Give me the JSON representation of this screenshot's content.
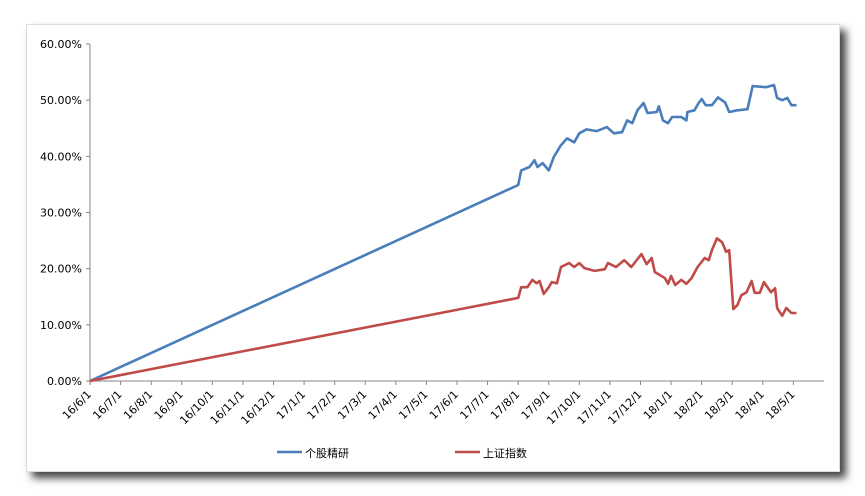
{
  "chart_data": {
    "type": "line",
    "title": "",
    "xlabel": "",
    "ylabel": "",
    "ylim": [
      0,
      60
    ],
    "yticks": [
      "0.00%",
      "10.00%",
      "20.00%",
      "30.00%",
      "40.00%",
      "50.00%",
      "60.00%"
    ],
    "xlim": [
      "2016-06-01",
      "2018-06-01"
    ],
    "xticks": [
      "16/6/1",
      "16/7/1",
      "16/8/1",
      "16/9/1",
      "16/10/1",
      "16/11/1",
      "16/12/1",
      "17/1/1",
      "17/2/1",
      "17/3/1",
      "17/4/1",
      "17/5/1",
      "17/6/1",
      "17/7/1",
      "17/8/1",
      "17/9/1",
      "17/10/1",
      "17/11/1",
      "17/12/1",
      "18/1/1",
      "18/2/1",
      "18/3/1",
      "18/4/1",
      "18/5/1"
    ],
    "grid": false,
    "legend": "bottom",
    "series": [
      {
        "name": "个股精研",
        "color": "#4a7ebb",
        "points": [
          [
            "2016-06-01",
            0
          ],
          [
            "2017-07-31",
            34.9
          ],
          [
            "2017-08-04",
            37.5
          ],
          [
            "2017-08-12",
            38.1
          ],
          [
            "2017-08-17",
            39.3
          ],
          [
            "2017-08-20",
            38.1
          ],
          [
            "2017-08-25",
            38.8
          ],
          [
            "2017-09-01",
            37.5
          ],
          [
            "2017-09-06",
            39.9
          ],
          [
            "2017-09-13",
            42.0
          ],
          [
            "2017-09-19",
            43.2
          ],
          [
            "2017-09-26",
            42.5
          ],
          [
            "2017-10-01",
            44.1
          ],
          [
            "2017-10-08",
            44.8
          ],
          [
            "2017-10-18",
            44.5
          ],
          [
            "2017-10-28",
            45.2
          ],
          [
            "2017-11-05",
            44.1
          ],
          [
            "2017-11-13",
            44.3
          ],
          [
            "2017-11-18",
            46.4
          ],
          [
            "2017-11-23",
            45.9
          ],
          [
            "2017-11-28",
            48.2
          ],
          [
            "2017-12-04",
            49.5
          ],
          [
            "2017-12-08",
            47.7
          ],
          [
            "2017-12-17",
            47.9
          ],
          [
            "2017-12-19",
            48.9
          ],
          [
            "2017-12-23",
            46.4
          ],
          [
            "2017-12-28",
            45.9
          ],
          [
            "2018-01-02",
            47.0
          ],
          [
            "2018-01-11",
            47.0
          ],
          [
            "2018-01-16",
            46.4
          ],
          [
            "2018-01-17",
            47.9
          ],
          [
            "2018-01-24",
            48.2
          ],
          [
            "2018-01-28",
            49.5
          ],
          [
            "2018-02-01",
            50.2
          ],
          [
            "2018-02-05",
            49.1
          ],
          [
            "2018-02-11",
            49.1
          ],
          [
            "2018-02-17",
            50.5
          ],
          [
            "2018-02-24",
            49.6
          ],
          [
            "2018-02-28",
            47.9
          ],
          [
            "2018-03-06",
            48.2
          ],
          [
            "2018-03-16",
            48.4
          ],
          [
            "2018-03-21",
            52.5
          ],
          [
            "2018-04-04",
            52.3
          ],
          [
            "2018-04-12",
            52.7
          ],
          [
            "2018-04-15",
            50.4
          ],
          [
            "2018-04-20",
            50.0
          ],
          [
            "2018-04-25",
            50.4
          ],
          [
            "2018-04-29",
            49.1
          ],
          [
            "2018-05-04",
            49.1
          ]
        ]
      },
      {
        "name": "上证指数",
        "color": "#be4b48",
        "points": [
          [
            "2016-06-01",
            0
          ],
          [
            "2017-08-01",
            14.8
          ],
          [
            "2017-08-04",
            16.7
          ],
          [
            "2017-08-10",
            16.7
          ],
          [
            "2017-08-15",
            18.0
          ],
          [
            "2017-08-19",
            17.4
          ],
          [
            "2017-08-22",
            17.8
          ],
          [
            "2017-08-26",
            15.5
          ],
          [
            "2017-09-01",
            16.7
          ],
          [
            "2017-09-04",
            17.6
          ],
          [
            "2017-09-09",
            17.4
          ],
          [
            "2017-09-13",
            20.3
          ],
          [
            "2017-09-21",
            21.0
          ],
          [
            "2017-09-26",
            20.3
          ],
          [
            "2017-10-01",
            21.0
          ],
          [
            "2017-10-06",
            20.1
          ],
          [
            "2017-10-16",
            19.6
          ],
          [
            "2017-10-26",
            19.9
          ],
          [
            "2017-10-29",
            21.0
          ],
          [
            "2017-11-07",
            20.3
          ],
          [
            "2017-11-15",
            21.5
          ],
          [
            "2017-11-22",
            20.3
          ],
          [
            "2017-12-02",
            22.6
          ],
          [
            "2017-12-07",
            20.8
          ],
          [
            "2017-12-12",
            21.9
          ],
          [
            "2017-12-15",
            19.4
          ],
          [
            "2017-12-25",
            18.3
          ],
          [
            "2017-12-28",
            17.3
          ],
          [
            "2018-01-01",
            18.7
          ],
          [
            "2018-01-05",
            17.1
          ],
          [
            "2018-01-11",
            18.0
          ],
          [
            "2018-01-16",
            17.3
          ],
          [
            "2018-01-21",
            18.3
          ],
          [
            "2018-01-27",
            20.3
          ],
          [
            "2018-02-04",
            21.9
          ],
          [
            "2018-02-08",
            21.5
          ],
          [
            "2018-02-11",
            23.3
          ],
          [
            "2018-02-16",
            25.4
          ],
          [
            "2018-02-21",
            24.7
          ],
          [
            "2018-02-25",
            23.0
          ],
          [
            "2018-02-28",
            23.3
          ],
          [
            "2018-03-02",
            12.8
          ],
          [
            "2018-03-06",
            13.5
          ],
          [
            "2018-03-10",
            15.3
          ],
          [
            "2018-03-15",
            15.8
          ],
          [
            "2018-03-20",
            17.8
          ],
          [
            "2018-03-23",
            15.7
          ],
          [
            "2018-03-28",
            15.7
          ],
          [
            "2018-04-02",
            17.6
          ],
          [
            "2018-04-09",
            15.8
          ],
          [
            "2018-04-13",
            16.5
          ],
          [
            "2018-04-15",
            13.0
          ],
          [
            "2018-04-20",
            11.6
          ],
          [
            "2018-04-24",
            13.0
          ],
          [
            "2018-04-29",
            12.1
          ],
          [
            "2018-05-04",
            12.1
          ]
        ]
      }
    ]
  }
}
